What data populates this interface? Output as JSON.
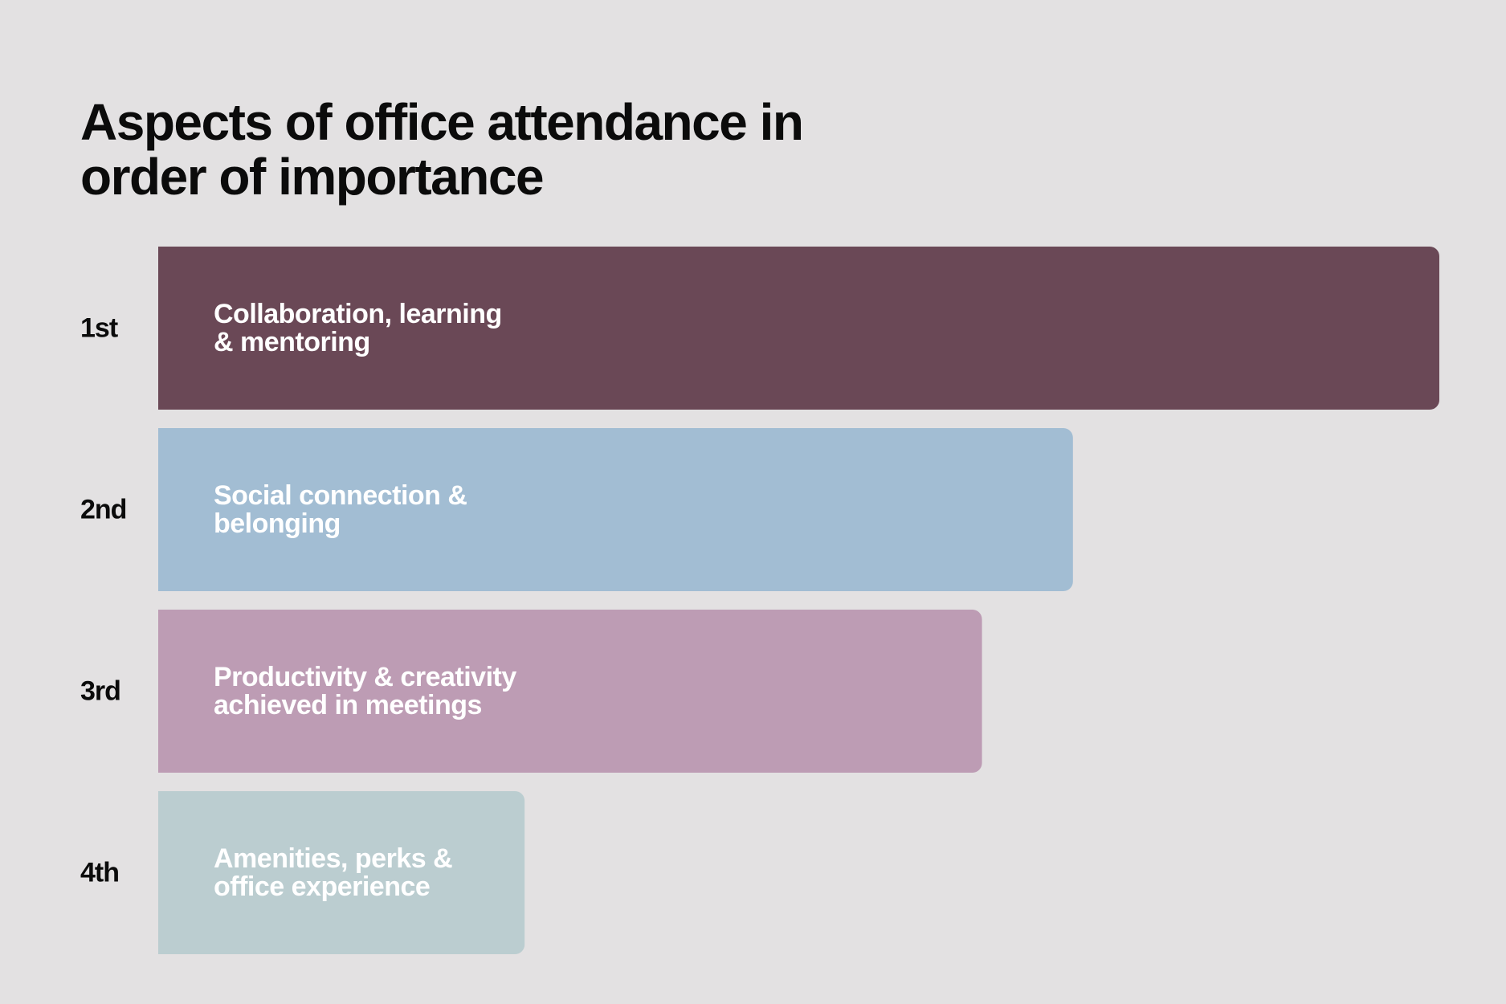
{
  "chart_data": {
    "type": "bar",
    "orientation": "horizontal",
    "title_lines": [
      "Aspects of office attendance in",
      "order of importance"
    ],
    "categories": [
      "1st",
      "2nd",
      "3rd",
      "4th"
    ],
    "bar_labels": [
      [
        "Collaboration, learning",
        "& mentoring"
      ],
      [
        "Social connection &",
        "belonging"
      ],
      [
        "Productivity & creativity",
        "achieved in meetings"
      ],
      [
        "Amenities, perks &",
        "office experience"
      ]
    ],
    "values": [
      100,
      71.4,
      64.3,
      28.6
    ],
    "xlim": [
      0,
      100
    ],
    "grid": false,
    "legend": "none",
    "colors": [
      "#6a4856",
      "#a2bdd3",
      "#bd9cb4",
      "#bbcdd0"
    ]
  }
}
